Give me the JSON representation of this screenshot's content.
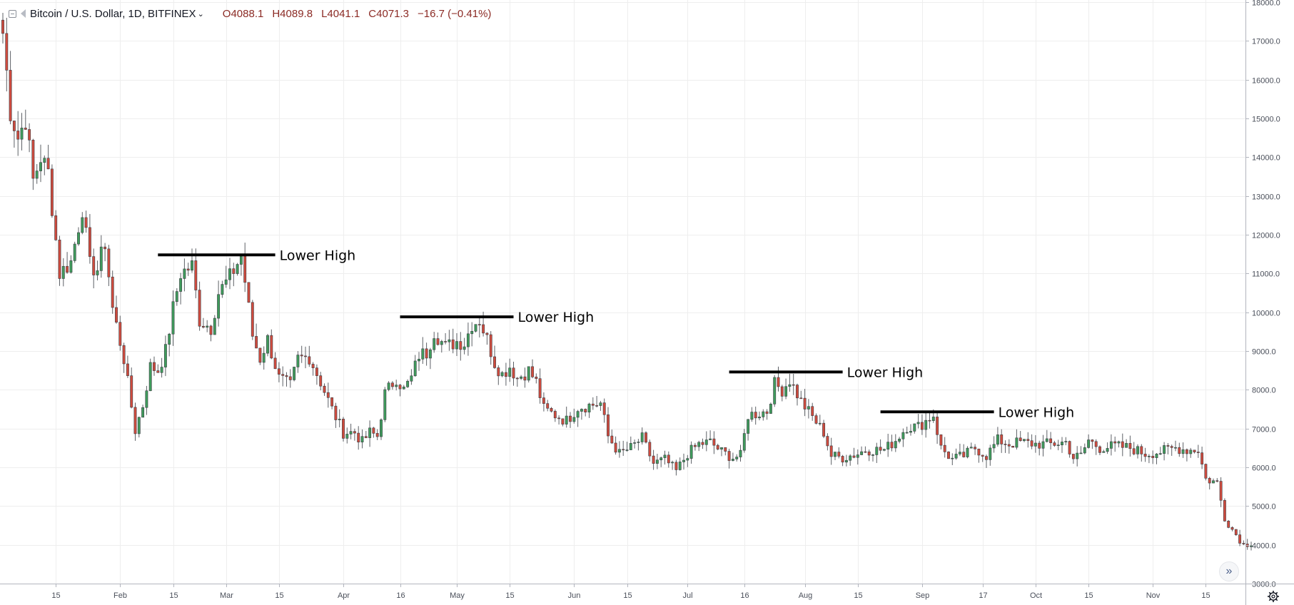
{
  "header": {
    "symbol": "Bitcoin / U.S. Dollar, 1D, BITFINEX",
    "open": "O4088.1",
    "high": "H4089.8",
    "low": "L4041.1",
    "close": "C4071.3",
    "change": "−16.7 (−0.41%)"
  },
  "colors": {
    "up": "#3f9c5c",
    "down": "#d04b3e",
    "grid": "#eeeeee",
    "line": "#000000"
  },
  "icons": {
    "collapse": "collapse-box-icon",
    "flag": "flag-icon",
    "settings": "gear-icon",
    "scroll": "double-chevron-right-icon"
  },
  "chart_data": {
    "type": "candlestick",
    "title": "",
    "xlabel": "",
    "ylabel": "",
    "ylim": [
      3000,
      18000
    ],
    "yticks": [
      "3000.0",
      "4000.0",
      "5000.0",
      "6000.0",
      "7000.0",
      "8000.0",
      "9000.0",
      "10000.0",
      "11000.0",
      "12000.0",
      "13000.0",
      "14000.0",
      "15000.0",
      "16000.0",
      "17000.0",
      "18000.0"
    ],
    "xlim": [
      "2018-01-01",
      "2018-11-27"
    ],
    "xticks": [
      {
        "date": "2018-01-15",
        "label": "15"
      },
      {
        "date": "2018-02-01",
        "label": "Feb"
      },
      {
        "date": "2018-02-15",
        "label": "15"
      },
      {
        "date": "2018-03-01",
        "label": "Mar"
      },
      {
        "date": "2018-03-15",
        "label": "15"
      },
      {
        "date": "2018-04-01",
        "label": "Apr"
      },
      {
        "date": "2018-04-16",
        "label": "16"
      },
      {
        "date": "2018-05-01",
        "label": "May"
      },
      {
        "date": "2018-05-15",
        "label": "15"
      },
      {
        "date": "2018-06-01",
        "label": "Jun"
      },
      {
        "date": "2018-06-15",
        "label": "15"
      },
      {
        "date": "2018-07-01",
        "label": "Jul"
      },
      {
        "date": "2018-07-16",
        "label": "16"
      },
      {
        "date": "2018-08-01",
        "label": "Aug"
      },
      {
        "date": "2018-08-15",
        "label": "15"
      },
      {
        "date": "2018-09-01",
        "label": "Sep"
      },
      {
        "date": "2018-09-17",
        "label": "17"
      },
      {
        "date": "2018-10-01",
        "label": "Oct"
      },
      {
        "date": "2018-10-15",
        "label": "15"
      },
      {
        "date": "2018-11-01",
        "label": "Nov"
      },
      {
        "date": "2018-11-15",
        "label": "15"
      }
    ],
    "annotations": [
      {
        "text": "Lower High",
        "price": 11480,
        "start": "2018-02-11",
        "end": "2018-03-14"
      },
      {
        "text": "Lower High",
        "price": 9880,
        "start": "2018-04-16",
        "end": "2018-05-16"
      },
      {
        "text": "Lower High",
        "price": 8460,
        "start": "2018-07-12",
        "end": "2018-08-11"
      },
      {
        "text": "Lower High",
        "price": 7430,
        "start": "2018-08-21",
        "end": "2018-09-20"
      }
    ],
    "anchors": [
      [
        "2018-01-01",
        17200
      ],
      [
        "2018-01-03",
        15200
      ],
      [
        "2018-01-05",
        14500
      ],
      [
        "2018-01-07",
        15000
      ],
      [
        "2018-01-09",
        13400
      ],
      [
        "2018-01-11",
        14000
      ],
      [
        "2018-01-13",
        13600
      ],
      [
        "2018-01-16",
        11000
      ],
      [
        "2018-01-19",
        11300
      ],
      [
        "2018-01-22",
        12700
      ],
      [
        "2018-01-24",
        11200
      ],
      [
        "2018-01-26",
        11100
      ],
      [
        "2018-01-28",
        11800
      ],
      [
        "2018-01-30",
        10100
      ],
      [
        "2018-02-02",
        8800
      ],
      [
        "2018-02-05",
        6950
      ],
      [
        "2018-02-07",
        7600
      ],
      [
        "2018-02-09",
        8600
      ],
      [
        "2018-02-11",
        8500
      ],
      [
        "2018-02-13",
        9000
      ],
      [
        "2018-02-15",
        10100
      ],
      [
        "2018-02-17",
        11000
      ],
      [
        "2018-02-20",
        11200
      ],
      [
        "2018-02-22",
        9800
      ],
      [
        "2018-02-25",
        9600
      ],
      [
        "2018-02-27",
        10500
      ],
      [
        "2018-03-02",
        10900
      ],
      [
        "2018-03-05",
        11450
      ],
      [
        "2018-03-06",
        10800
      ],
      [
        "2018-03-08",
        9400
      ],
      [
        "2018-03-10",
        8800
      ],
      [
        "2018-03-12",
        9300
      ],
      [
        "2018-03-15",
        8300
      ],
      [
        "2018-03-18",
        8100
      ],
      [
        "2018-03-20",
        8800
      ],
      [
        "2018-03-23",
        8850
      ],
      [
        "2018-03-26",
        8200
      ],
      [
        "2018-03-29",
        7500
      ],
      [
        "2018-04-01",
        6900
      ],
      [
        "2018-04-04",
        6900
      ],
      [
        "2018-04-06",
        6650
      ],
      [
        "2018-04-08",
        6900
      ],
      [
        "2018-04-10",
        6800
      ],
      [
        "2018-04-12",
        7900
      ],
      [
        "2018-04-15",
        8300
      ],
      [
        "2018-04-17",
        8000
      ],
      [
        "2018-04-19",
        8300
      ],
      [
        "2018-04-21",
        8900
      ],
      [
        "2018-04-23",
        8950
      ],
      [
        "2018-04-25",
        9500
      ],
      [
        "2018-04-28",
        9100
      ],
      [
        "2018-05-01",
        9250
      ],
      [
        "2018-05-03",
        9200
      ],
      [
        "2018-05-05",
        9700
      ],
      [
        "2018-05-07",
        9800
      ],
      [
        "2018-05-09",
        9300
      ],
      [
        "2018-05-11",
        8700
      ],
      [
        "2018-05-13",
        8400
      ],
      [
        "2018-05-15",
        8600
      ],
      [
        "2018-05-17",
        8300
      ],
      [
        "2018-05-20",
        8500
      ],
      [
        "2018-05-22",
        8200
      ],
      [
        "2018-05-24",
        7500
      ],
      [
        "2018-05-27",
        7350
      ],
      [
        "2018-05-30",
        7200
      ],
      [
        "2018-06-02",
        7550
      ],
      [
        "2018-06-05",
        7600
      ],
      [
        "2018-06-08",
        7650
      ],
      [
        "2018-06-10",
        6800
      ],
      [
        "2018-06-13",
        6350
      ],
      [
        "2018-06-16",
        6500
      ],
      [
        "2018-06-19",
        6750
      ],
      [
        "2018-06-22",
        6100
      ],
      [
        "2018-06-25",
        6200
      ],
      [
        "2018-06-28",
        5900
      ],
      [
        "2018-07-01",
        6350
      ],
      [
        "2018-07-04",
        6600
      ],
      [
        "2018-07-07",
        6650
      ],
      [
        "2018-07-10",
        6400
      ],
      [
        "2018-07-13",
        6250
      ],
      [
        "2018-07-15",
        6300
      ],
      [
        "2018-07-17",
        7350
      ],
      [
        "2018-07-20",
        7400
      ],
      [
        "2018-07-22",
        7450
      ],
      [
        "2018-07-24",
        8150
      ],
      [
        "2018-07-26",
        8000
      ],
      [
        "2018-07-28",
        8250
      ],
      [
        "2018-07-31",
        7700
      ],
      [
        "2018-08-03",
        7300
      ],
      [
        "2018-08-06",
        6900
      ],
      [
        "2018-08-08",
        6300
      ],
      [
        "2018-08-11",
        6250
      ],
      [
        "2018-08-13",
        6300
      ],
      [
        "2018-08-15",
        6350
      ],
      [
        "2018-08-17",
        6450
      ],
      [
        "2018-08-19",
        6450
      ],
      [
        "2018-08-22",
        6450
      ],
      [
        "2018-08-25",
        6700
      ],
      [
        "2018-08-28",
        7050
      ],
      [
        "2018-08-31",
        7050
      ],
      [
        "2018-09-04",
        7350
      ],
      [
        "2018-09-06",
        6500
      ],
      [
        "2018-09-09",
        6200
      ],
      [
        "2018-09-12",
        6300
      ],
      [
        "2018-09-15",
        6500
      ],
      [
        "2018-09-18",
        6300
      ],
      [
        "2018-09-21",
        6700
      ],
      [
        "2018-09-24",
        6600
      ],
      [
        "2018-09-27",
        6650
      ],
      [
        "2018-10-01",
        6600
      ],
      [
        "2018-10-05",
        6600
      ],
      [
        "2018-10-09",
        6650
      ],
      [
        "2018-10-11",
        6250
      ],
      [
        "2018-10-13",
        6300
      ],
      [
        "2018-10-15",
        6700
      ],
      [
        "2018-10-18",
        6500
      ],
      [
        "2018-10-22",
        6550
      ],
      [
        "2018-10-26",
        6500
      ],
      [
        "2018-10-30",
        6350
      ],
      [
        "2018-11-03",
        6400
      ],
      [
        "2018-11-07",
        6500
      ],
      [
        "2018-11-10",
        6450
      ],
      [
        "2018-11-13",
        6450
      ],
      [
        "2018-11-15",
        5700
      ],
      [
        "2018-11-18",
        5600
      ],
      [
        "2018-11-20",
        4700
      ],
      [
        "2018-11-22",
        4400
      ],
      [
        "2018-11-25",
        4000
      ],
      [
        "2018-11-27",
        4050
      ]
    ]
  }
}
